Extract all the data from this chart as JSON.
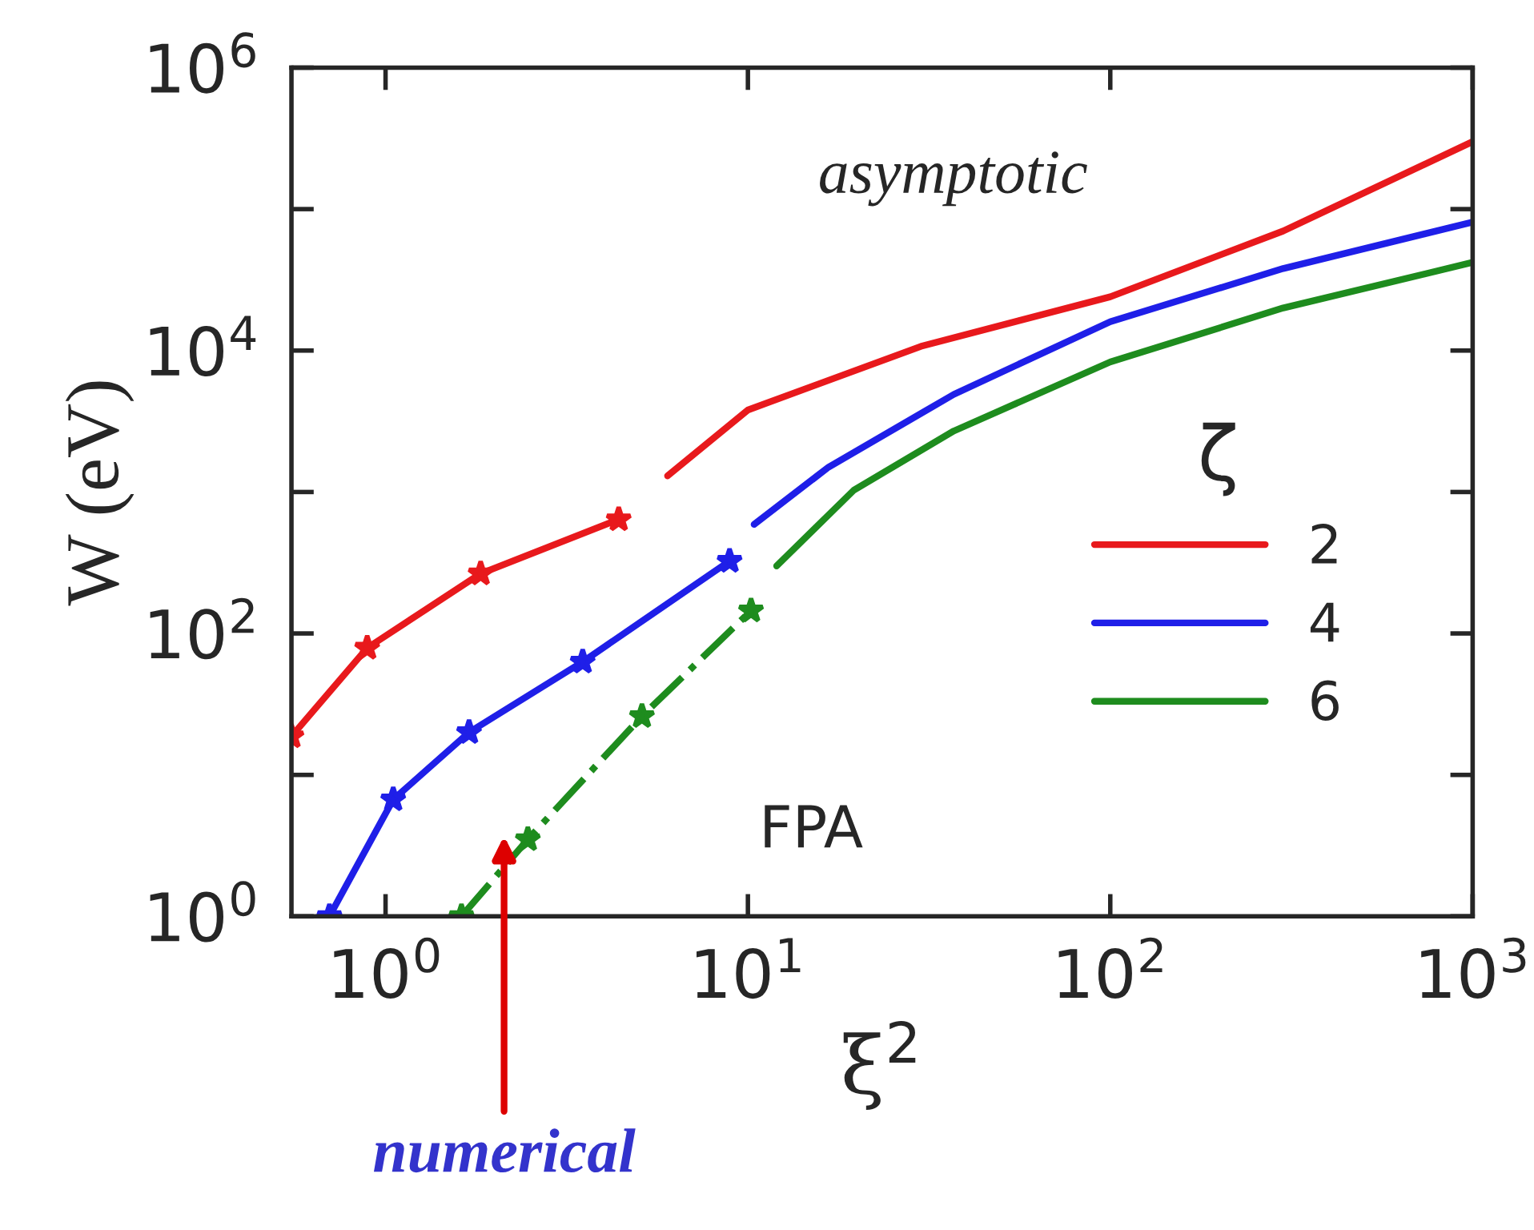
{
  "chart_data": {
    "type": "line",
    "xlabel": "ξ$^{2}$",
    "ylabel": "W (eV)",
    "legend_title": "ζ",
    "log": "xy",
    "xlim": [
      0.55,
      1000
    ],
    "ylim": [
      1,
      1000000
    ],
    "xticks": [
      {
        "value": 1,
        "label": "10$^{0}$"
      },
      {
        "value": 10,
        "label": "10$^{1}$"
      },
      {
        "value": 100,
        "label": "10$^{2}$"
      },
      {
        "value": 1000,
        "label": "10$^{3}$"
      }
    ],
    "yticks": [
      {
        "value": 1,
        "label": "10$^{0}$"
      },
      {
        "value": 10,
        "label": null
      },
      {
        "value": 100,
        "label": "10$^{2}$"
      },
      {
        "value": 1000,
        "label": null
      },
      {
        "value": 10000,
        "label": "10$^{4}$"
      },
      {
        "value": 100000,
        "label": null
      },
      {
        "value": 1000000,
        "label": "10$^{6}$"
      }
    ],
    "grid": false,
    "legend": "right",
    "series": [
      {
        "color": "#e8191c",
        "marker": "star",
        "line_style": "solid",
        "x": [
          0.55,
          0.89,
          1.83,
          4.4
        ],
        "values": [
          18.7,
          79,
          265,
          640
        ]
      },
      {
        "color": "#1f1fe8",
        "marker": "star",
        "line_style": "solid",
        "x": [
          0.7,
          1.05,
          1.7,
          3.5,
          8.9
        ],
        "values": [
          1,
          6.7,
          20,
          63,
          325
        ]
      },
      {
        "color": "#1e8c1e",
        "marker": "star",
        "line_style": "dashdot",
        "x": [
          1.62,
          2.47,
          5.1,
          10.2
        ],
        "values": [
          1,
          3.5,
          26,
          145
        ]
      },
      {
        "name": "2",
        "color": "#e8191c",
        "marker": "none",
        "line_style": "solid",
        "x": [
          6,
          10,
          30,
          100,
          300,
          1000
        ],
        "values": [
          1300,
          3800,
          10700,
          24000,
          70000,
          300000
        ]
      },
      {
        "name": "4",
        "color": "#1f1fe8",
        "marker": "none",
        "line_style": "solid",
        "x": [
          10.4,
          16.7,
          37,
          100,
          300,
          1000
        ],
        "values": [
          590,
          1500,
          4900,
          16000,
          38000,
          81000
        ]
      },
      {
        "name": "6",
        "color": "#1e8c1e",
        "marker": "none",
        "line_style": "solid",
        "x": [
          12,
          19.6,
          37,
          100,
          300,
          1000
        ],
        "values": [
          300,
          1030,
          2700,
          8300,
          20000,
          42000
        ]
      }
    ],
    "annotations": [
      "asymptotic",
      "FPA",
      "numerical"
    ]
  }
}
